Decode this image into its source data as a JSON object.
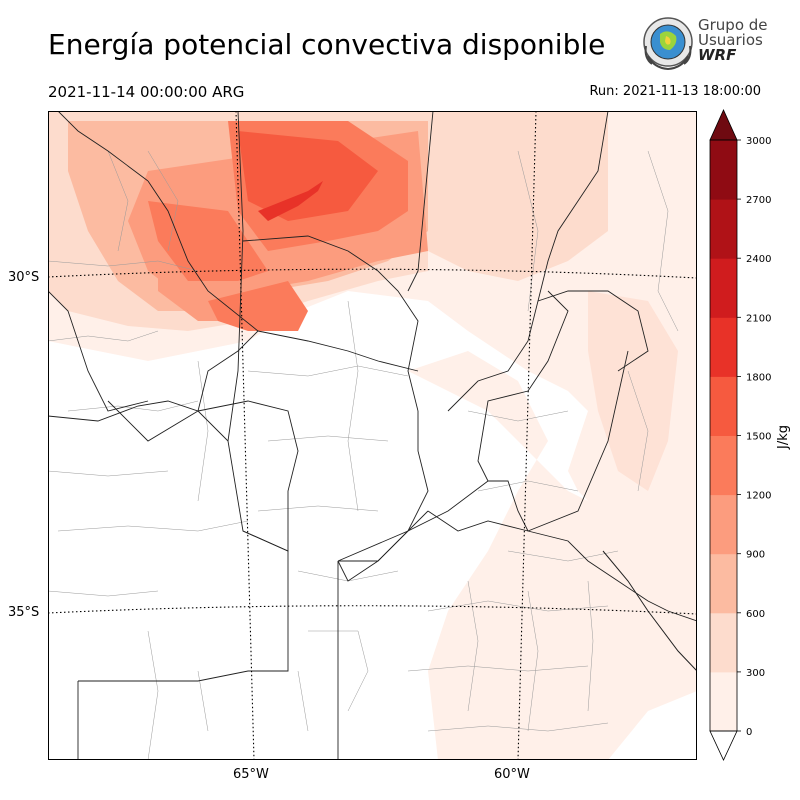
{
  "header": {
    "title": "Energía potencial convectiva disponible",
    "valid_time": "2021-11-14 00:00:00 ARG",
    "run_time": "Run: 2021-11-13 18:00:00"
  },
  "logo": {
    "line1": "Grupo de",
    "line2": "Usuarios",
    "line3": "WRF"
  },
  "map": {
    "latitude_labels": [
      "30°S",
      "35°S"
    ],
    "longitude_labels": [
      "65°W",
      "60°W"
    ]
  },
  "colorbar": {
    "unit": "J/kg",
    "ticks": [
      "0",
      "300",
      "600",
      "900",
      "1200",
      "1500",
      "1800",
      "2100",
      "2400",
      "2700",
      "3000"
    ],
    "colors": [
      "#fff0e9",
      "#fddccd",
      "#fcbba1",
      "#fc9c7e",
      "#fb7b5b",
      "#f65a3f",
      "#e83228",
      "#d01c1e",
      "#b01217",
      "#8f0b13",
      "#6f0a11"
    ]
  },
  "cape_field_levels_jkg": [
    0,
    300,
    600,
    900,
    1200,
    1500,
    1800,
    2100,
    2400,
    2700,
    3000
  ]
}
